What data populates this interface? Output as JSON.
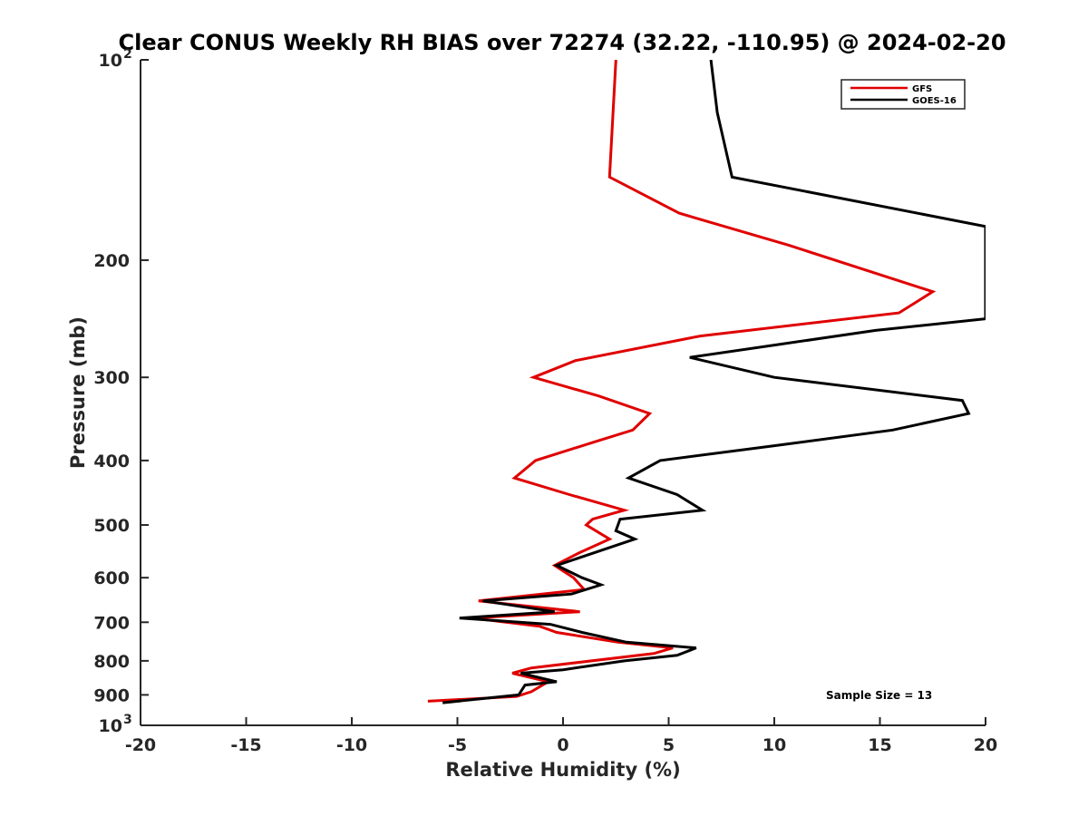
{
  "chart_data": {
    "type": "line",
    "title": "Clear CONUS Weekly RH BIAS over 72274 (32.22, -110.95) @ 2024-02-20",
    "xlabel": "Relative Humidity (%)",
    "ylabel": "Pressure (mb)",
    "xlim": [
      -20,
      20
    ],
    "ylim": [
      100,
      1000
    ],
    "yscale": "log",
    "y_reversed": true,
    "grid": false,
    "legend_position": "top-right",
    "x_ticks": [
      -20,
      -15,
      -10,
      -5,
      0,
      5,
      10,
      15,
      20
    ],
    "x_tick_labels": [
      "-20",
      "-15",
      "-10",
      "-5",
      "0",
      "5",
      "10",
      "15",
      "20"
    ],
    "y_ticks": [
      100,
      200,
      300,
      400,
      500,
      600,
      700,
      800,
      900,
      1000
    ],
    "y_tick_labels": [
      {
        "base": "10",
        "exp": "2"
      },
      {
        "base": "200",
        "exp": ""
      },
      {
        "base": "300",
        "exp": ""
      },
      {
        "base": "400",
        "exp": ""
      },
      {
        "base": "500",
        "exp": ""
      },
      {
        "base": "600",
        "exp": ""
      },
      {
        "base": "700",
        "exp": ""
      },
      {
        "base": "800",
        "exp": ""
      },
      {
        "base": "900",
        "exp": ""
      },
      {
        "base": "10",
        "exp": "3"
      }
    ],
    "annotation": "Sample Size = 13",
    "series": [
      {
        "name": "GFS",
        "color": "#e00000",
        "points": [
          [
            2.5,
            100
          ],
          [
            2.2,
            150
          ],
          [
            5.5,
            170
          ],
          [
            10.7,
            190
          ],
          [
            17.5,
            223
          ],
          [
            15.9,
            240
          ],
          [
            6.5,
            260
          ],
          [
            0.6,
            283
          ],
          [
            -1.4,
            300
          ],
          [
            1.7,
            320
          ],
          [
            4.1,
            340
          ],
          [
            3.3,
            360
          ],
          [
            1.5,
            375
          ],
          [
            -1.3,
            400
          ],
          [
            -2.3,
            425
          ],
          [
            0.3,
            450
          ],
          [
            2.9,
            475
          ],
          [
            1.4,
            490
          ],
          [
            1.1,
            500
          ],
          [
            2.2,
            525
          ],
          [
            0.8,
            550
          ],
          [
            -0.4,
            575
          ],
          [
            0.5,
            600
          ],
          [
            1.0,
            625
          ],
          [
            -4.0,
            650
          ],
          [
            0.8,
            675
          ],
          [
            -4.3,
            690
          ],
          [
            -1.1,
            710
          ],
          [
            -0.3,
            725
          ],
          [
            2.6,
            750
          ],
          [
            5.2,
            765
          ],
          [
            4.3,
            780
          ],
          [
            -1.5,
            820
          ],
          [
            -2.4,
            835
          ],
          [
            -0.7,
            860
          ],
          [
            -1.5,
            890
          ],
          [
            -2.2,
            905
          ],
          [
            -6.4,
            920
          ]
        ]
      },
      {
        "name": "GOES-16",
        "color": "#000000",
        "points": [
          [
            7.0,
            100
          ],
          [
            7.3,
            120
          ],
          [
            8.0,
            150
          ],
          [
            20.0,
            178
          ],
          [
            20.0,
            245
          ],
          [
            14.8,
            255
          ],
          [
            6.0,
            280
          ],
          [
            10.0,
            300
          ],
          [
            18.9,
            325
          ],
          [
            19.2,
            340
          ],
          [
            15.6,
            360
          ],
          [
            10.0,
            380
          ],
          [
            4.6,
            400
          ],
          [
            3.1,
            425
          ],
          [
            5.4,
            450
          ],
          [
            6.6,
            475
          ],
          [
            2.7,
            490
          ],
          [
            2.5,
            510
          ],
          [
            3.4,
            525
          ],
          [
            1.5,
            550
          ],
          [
            -0.3,
            575
          ],
          [
            0.9,
            600
          ],
          [
            1.8,
            615
          ],
          [
            0.4,
            635
          ],
          [
            -3.8,
            650
          ],
          [
            -0.4,
            675
          ],
          [
            -4.9,
            690
          ],
          [
            -0.6,
            705
          ],
          [
            0.9,
            725
          ],
          [
            3.0,
            750
          ],
          [
            6.3,
            765
          ],
          [
            5.4,
            785
          ],
          [
            2.9,
            800
          ],
          [
            0.0,
            825
          ],
          [
            -2.0,
            835
          ],
          [
            -0.3,
            860
          ],
          [
            -1.8,
            870
          ],
          [
            -2.1,
            900
          ],
          [
            -5.7,
            925
          ]
        ]
      }
    ]
  }
}
